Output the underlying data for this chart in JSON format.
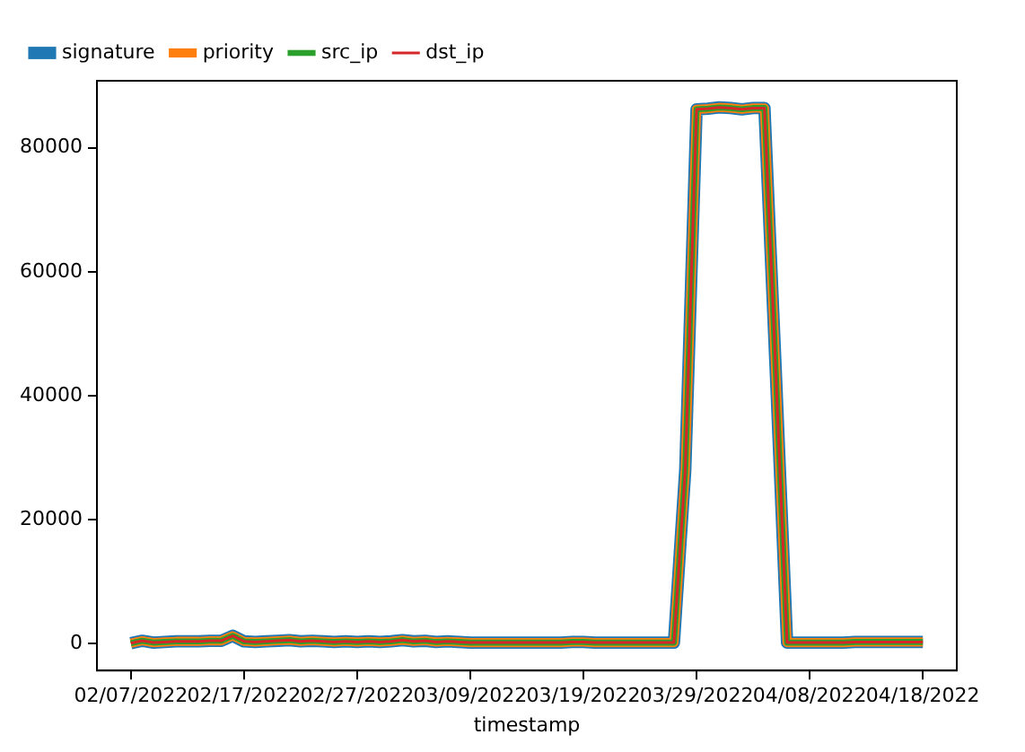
{
  "chart_data": {
    "type": "line",
    "xlabel": "timestamp",
    "x": [
      "2022-02-07",
      "2022-02-08",
      "2022-02-09",
      "2022-02-10",
      "2022-02-11",
      "2022-02-12",
      "2022-02-13",
      "2022-02-14",
      "2022-02-15",
      "2022-02-16",
      "2022-02-17",
      "2022-02-18",
      "2022-02-19",
      "2022-02-20",
      "2022-02-21",
      "2022-02-22",
      "2022-02-23",
      "2022-02-24",
      "2022-02-25",
      "2022-02-26",
      "2022-02-27",
      "2022-02-28",
      "2022-03-01",
      "2022-03-02",
      "2022-03-03",
      "2022-03-04",
      "2022-03-05",
      "2022-03-06",
      "2022-03-07",
      "2022-03-08",
      "2022-03-09",
      "2022-03-10",
      "2022-03-11",
      "2022-03-12",
      "2022-03-13",
      "2022-03-14",
      "2022-03-15",
      "2022-03-16",
      "2022-03-17",
      "2022-03-18",
      "2022-03-19",
      "2022-03-20",
      "2022-03-21",
      "2022-03-22",
      "2022-03-23",
      "2022-03-24",
      "2022-03-25",
      "2022-03-26",
      "2022-03-27",
      "2022-03-28",
      "2022-03-29",
      "2022-03-30",
      "2022-03-31",
      "2022-04-01",
      "2022-04-02",
      "2022-04-03",
      "2022-04-04",
      "2022-04-05",
      "2022-04-06",
      "2022-04-07",
      "2022-04-08",
      "2022-04-09",
      "2022-04-10",
      "2022-04-11",
      "2022-04-12",
      "2022-04-13",
      "2022-04-14",
      "2022-04-15",
      "2022-04-16",
      "2022-04-17",
      "2022-04-18"
    ],
    "series": [
      {
        "name": "signature",
        "color": "#1f77b4",
        "values": [
          100,
          500,
          200,
          300,
          400,
          400,
          400,
          500,
          500,
          1300,
          400,
          300,
          400,
          500,
          600,
          400,
          500,
          400,
          300,
          400,
          300,
          400,
          300,
          400,
          600,
          400,
          500,
          300,
          400,
          300,
          200,
          200,
          200,
          200,
          200,
          200,
          200,
          200,
          200,
          300,
          300,
          200,
          200,
          200,
          200,
          200,
          200,
          200,
          200,
          28000,
          86200,
          86300,
          86500,
          86400,
          86200,
          86400,
          86400,
          44000,
          200,
          200,
          200,
          200,
          200,
          200,
          300,
          300,
          300,
          300,
          300,
          300,
          300
        ]
      },
      {
        "name": "priority",
        "color": "#ff7f0e",
        "values": [
          100,
          500,
          200,
          300,
          400,
          400,
          400,
          500,
          500,
          1300,
          400,
          300,
          400,
          500,
          600,
          400,
          500,
          400,
          300,
          400,
          300,
          400,
          300,
          400,
          600,
          400,
          500,
          300,
          400,
          300,
          200,
          200,
          200,
          200,
          200,
          200,
          200,
          200,
          200,
          300,
          300,
          200,
          200,
          200,
          200,
          200,
          200,
          200,
          200,
          28000,
          86200,
          86300,
          86500,
          86400,
          86200,
          86400,
          86400,
          44000,
          200,
          200,
          200,
          200,
          200,
          200,
          300,
          300,
          300,
          300,
          300,
          300,
          300
        ]
      },
      {
        "name": "src_ip",
        "color": "#2ca02c",
        "values": [
          100,
          500,
          200,
          300,
          400,
          400,
          400,
          500,
          500,
          1300,
          400,
          300,
          400,
          500,
          600,
          400,
          500,
          400,
          300,
          400,
          300,
          400,
          300,
          400,
          600,
          400,
          500,
          300,
          400,
          300,
          200,
          200,
          200,
          200,
          200,
          200,
          200,
          200,
          200,
          300,
          300,
          200,
          200,
          200,
          200,
          200,
          200,
          200,
          200,
          28000,
          86200,
          86300,
          86500,
          86400,
          86200,
          86400,
          86400,
          44000,
          200,
          200,
          200,
          200,
          200,
          200,
          300,
          300,
          300,
          300,
          300,
          300,
          300
        ]
      },
      {
        "name": "dst_ip",
        "color": "#d62728",
        "values": [
          100,
          500,
          200,
          300,
          400,
          400,
          400,
          500,
          500,
          1300,
          400,
          300,
          400,
          500,
          600,
          400,
          500,
          400,
          300,
          400,
          300,
          400,
          300,
          400,
          600,
          400,
          500,
          300,
          400,
          300,
          200,
          200,
          200,
          200,
          200,
          200,
          200,
          200,
          200,
          300,
          300,
          200,
          200,
          200,
          200,
          200,
          200,
          200,
          200,
          28000,
          86200,
          86300,
          86500,
          86400,
          86200,
          86400,
          86400,
          44000,
          200,
          200,
          200,
          200,
          200,
          200,
          300,
          300,
          300,
          300,
          300,
          300,
          300
        ]
      }
    ],
    "xlim": [
      "2022-02-04",
      "2022-04-21"
    ],
    "xticks": [
      {
        "value": "2022-02-07",
        "label": "02/07/2022"
      },
      {
        "value": "2022-02-17",
        "label": "02/17/2022"
      },
      {
        "value": "2022-02-27",
        "label": "02/27/2022"
      },
      {
        "value": "2022-03-09",
        "label": "03/09/2022"
      },
      {
        "value": "2022-03-19",
        "label": "03/19/2022"
      },
      {
        "value": "2022-03-29",
        "label": "03/29/2022"
      },
      {
        "value": "2022-04-08",
        "label": "04/08/2022"
      },
      {
        "value": "2022-04-18",
        "label": "04/18/2022"
      }
    ],
    "ylim": [
      -4300,
      90800
    ],
    "yticks": [
      0,
      20000,
      40000,
      60000,
      80000
    ],
    "legend": "top left",
    "grid": false,
    "marker": "none",
    "line_style": "solid"
  }
}
